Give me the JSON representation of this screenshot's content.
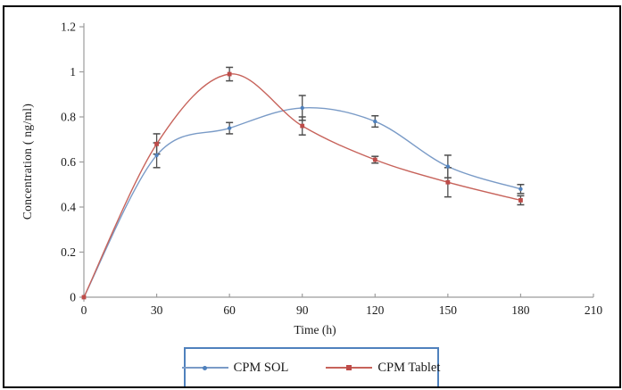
{
  "chart_data": {
    "type": "line",
    "title": "",
    "xlabel": "Time (h)",
    "ylabel": "Concentration ( ng/ml)",
    "x": [
      0,
      30,
      60,
      90,
      120,
      150,
      180
    ],
    "series": [
      {
        "name": "CPM SOL",
        "line_color": "#7A9BC7",
        "marker_color": "#4F81BD",
        "marker": "circle",
        "values": [
          0,
          0.63,
          0.75,
          0.84,
          0.78,
          0.58,
          0.48
        ],
        "errors": [
          null,
          0.055,
          0.025,
          0.055,
          0.025,
          0.05,
          0.02
        ]
      },
      {
        "name": "CPM Tablet",
        "line_color": "#C7635B",
        "marker_color": "#BE4B48",
        "marker": "square",
        "values": [
          0,
          0.68,
          0.99,
          0.76,
          0.61,
          0.51,
          0.43
        ],
        "errors": [
          null,
          0.045,
          0.03,
          0.04,
          0.015,
          0.065,
          0.02
        ]
      }
    ],
    "xticks": [
      "0",
      "30",
      "60",
      "90",
      "120",
      "150",
      "180",
      "210"
    ],
    "xtick_values": [
      0,
      30,
      60,
      90,
      120,
      150,
      180,
      210
    ],
    "yticks": [
      "0",
      "0.2",
      "0.4",
      "0.6",
      "0.8",
      "1",
      "1.2"
    ],
    "ytick_values": [
      0,
      0.2,
      0.4,
      0.6,
      0.8,
      1,
      1.2
    ],
    "xlim": [
      0,
      210
    ],
    "ylim": [
      0,
      1.2
    ],
    "grid": false,
    "legend_position": "bottom",
    "axis_color": "#9C9C9C",
    "error_bar_color": "#4D4D4D",
    "legend_border_color": "#4F81BD",
    "text_color": "#1a1a1a"
  }
}
